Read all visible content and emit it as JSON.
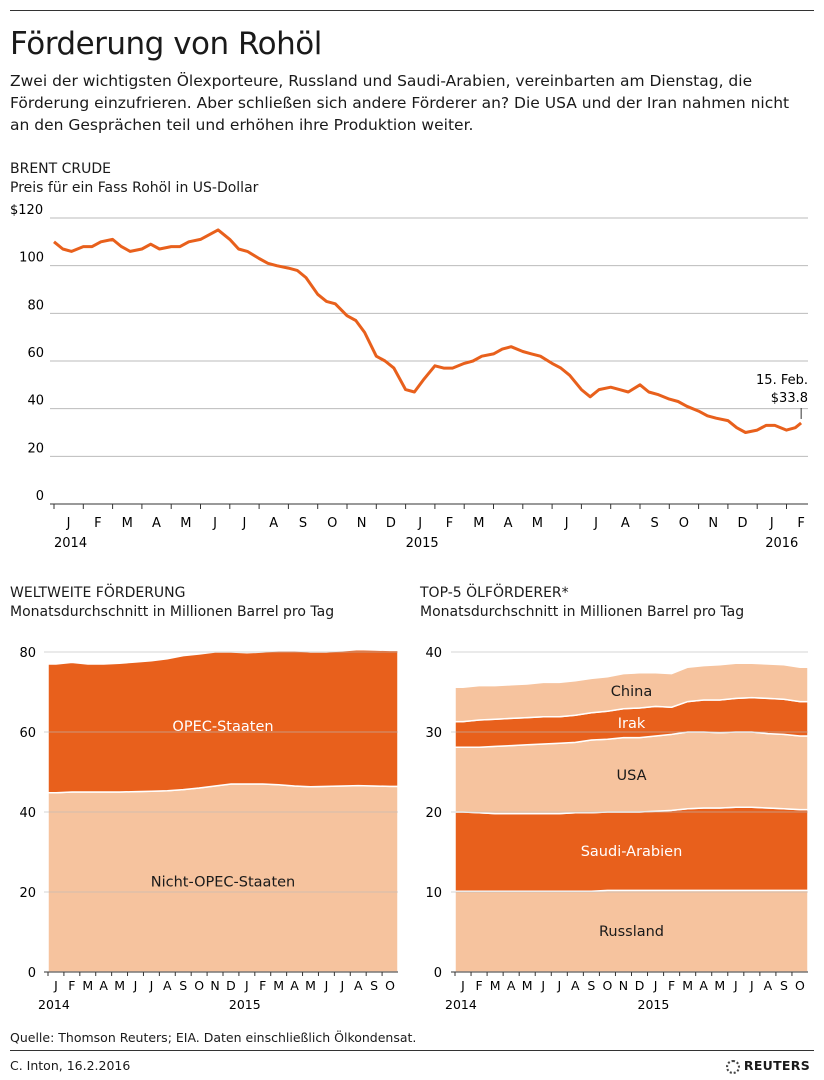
{
  "title": "Förderung von Rohöl",
  "intro": "Zwei der wichtigsten Ölexporteure, Russland und Saudi-Arabien, vereinbarten am Dienstag, die Förderung einzufrieren. Aber schließen sich andere Förderer an? Die USA und der Iran nahmen nicht an den Gesprächen teil und erhöhen ihre Produktion weiter.",
  "colors": {
    "dark_orange": "#e8601c",
    "light_orange": "#f6c39e",
    "grid": "#bbbbbb",
    "axis": "#333333"
  },
  "source": "Quelle: Thomson Reuters; EIA. Daten einschließlich Ölkondensat.",
  "credit": "C. Inton, 16.2.2016",
  "logo_text": "REUTERS",
  "chart_data": [
    {
      "type": "line",
      "title": "BRENT CRUDE",
      "subtitle": "Preis für ein Fass Rohöl in US-Dollar",
      "ylim": [
        0,
        120
      ],
      "y_ticks": [
        "0",
        "20",
        "40",
        "60",
        "80",
        "100",
        "$120"
      ],
      "month_labels": [
        "J",
        "F",
        "M",
        "A",
        "M",
        "J",
        "J",
        "A",
        "S",
        "O",
        "N",
        "D",
        "J",
        "F",
        "M",
        "A",
        "M",
        "J",
        "J",
        "A",
        "S",
        "O",
        "N",
        "D",
        "J",
        "F"
      ],
      "year_labels": [
        {
          "label": "2014",
          "month_index": 0
        },
        {
          "label": "2015",
          "month_index": 12
        },
        {
          "label": "2016",
          "month_index": 24
        }
      ],
      "annotation": {
        "date": "15. Feb.",
        "value": "$33.8"
      },
      "series": [
        {
          "x_month": [
            0,
            0.3,
            0.6,
            1,
            1.3,
            1.6,
            2,
            2.3,
            2.6,
            3,
            3.3,
            3.6,
            4,
            4.3,
            4.6,
            5,
            5.3,
            5.6,
            6,
            6.3,
            6.6,
            7,
            7.3,
            7.6,
            8,
            8.3,
            8.6,
            9,
            9.3,
            9.6,
            10,
            10.3,
            10.6,
            11,
            11.3,
            11.6,
            12,
            12.3,
            12.6,
            13,
            13.3,
            13.6,
            14,
            14.3,
            14.6,
            15,
            15.3,
            15.6,
            16,
            16.3,
            16.6,
            17,
            17.3,
            17.6,
            18,
            18.3,
            18.6,
            19,
            19.3,
            19.6,
            20,
            20.3,
            20.6,
            21,
            21.3,
            21.6,
            22,
            22.3,
            22.6,
            23,
            23.3,
            23.6,
            24,
            24.3,
            24.6,
            25,
            25.3,
            25.5
          ],
          "y": [
            110,
            107,
            106,
            108,
            108,
            110,
            111,
            108,
            106,
            107,
            109,
            107,
            108,
            108,
            110,
            111,
            113,
            115,
            111,
            107,
            106,
            103,
            101,
            100,
            99,
            98,
            95,
            88,
            85,
            84,
            79,
            77,
            72,
            62,
            60,
            57,
            48,
            47,
            52,
            58,
            57,
            57,
            59,
            60,
            62,
            63,
            65,
            66,
            64,
            63,
            62,
            59,
            57,
            54,
            48,
            45,
            48,
            49,
            48,
            47,
            50,
            47,
            46,
            44,
            43,
            41,
            39,
            37,
            36,
            35,
            32,
            30,
            31,
            33,
            33,
            31,
            32,
            34
          ]
        }
      ]
    },
    {
      "type": "area",
      "title": "WELTWEITE FÖRDERUNG",
      "subtitle": "Monatsdurchschnitt in Millionen Barrel pro Tag",
      "ylim": [
        0,
        80
      ],
      "y_ticks": [
        "0",
        "20",
        "40",
        "60",
        "80"
      ],
      "month_labels": [
        "J",
        "F",
        "M",
        "A",
        "M",
        "J",
        "J",
        "A",
        "S",
        "O",
        "N",
        "D",
        "J",
        "F",
        "M",
        "A",
        "M",
        "J",
        "J",
        "A",
        "S",
        "O"
      ],
      "year_labels": [
        {
          "label": "2014",
          "month_index": 0
        },
        {
          "label": "2015",
          "month_index": 12
        }
      ],
      "series": [
        {
          "name": "Nicht-OPEC-Staaten",
          "values": [
            44.8,
            45.0,
            45.0,
            45.0,
            45.0,
            45.1,
            45.2,
            45.3,
            45.6,
            46.0,
            46.5,
            47.0,
            47.0,
            47.0,
            46.8,
            46.5,
            46.3,
            46.4,
            46.5,
            46.6,
            46.5,
            46.4
          ]
        },
        {
          "name": "OPEC-Staaten",
          "values": [
            32.2,
            32.4,
            32.0,
            32.0,
            32.2,
            32.4,
            32.6,
            33.0,
            33.5,
            33.5,
            33.5,
            33.0,
            32.8,
            33.0,
            33.5,
            33.8,
            33.7,
            33.6,
            33.8,
            34.0,
            34.0,
            34.0
          ]
        }
      ]
    },
    {
      "type": "area",
      "title": "TOP-5 ÖLFÖRDERER*",
      "subtitle": "Monatsdurchschnitt in Millionen Barrel pro Tag",
      "ylim": [
        0,
        40
      ],
      "y_ticks": [
        "0",
        "10",
        "20",
        "30",
        "40"
      ],
      "month_labels": [
        "J",
        "F",
        "M",
        "A",
        "M",
        "J",
        "J",
        "A",
        "S",
        "O",
        "N",
        "D",
        "J",
        "F",
        "M",
        "A",
        "M",
        "J",
        "J",
        "A",
        "S",
        "O"
      ],
      "year_labels": [
        {
          "label": "2014",
          "month_index": 0
        },
        {
          "label": "2015",
          "month_index": 12
        }
      ],
      "series": [
        {
          "name": "Russland",
          "values": [
            10.1,
            10.1,
            10.1,
            10.1,
            10.1,
            10.1,
            10.1,
            10.1,
            10.1,
            10.2,
            10.2,
            10.2,
            10.2,
            10.2,
            10.2,
            10.2,
            10.2,
            10.2,
            10.2,
            10.2,
            10.2,
            10.2
          ]
        },
        {
          "name": "Saudi-Arabien",
          "values": [
            9.9,
            9.8,
            9.7,
            9.7,
            9.7,
            9.7,
            9.7,
            9.8,
            9.8,
            9.8,
            9.8,
            9.8,
            9.9,
            10.0,
            10.2,
            10.3,
            10.3,
            10.4,
            10.4,
            10.3,
            10.2,
            10.1
          ]
        },
        {
          "name": "USA",
          "values": [
            8.1,
            8.2,
            8.4,
            8.5,
            8.6,
            8.7,
            8.8,
            8.8,
            9.1,
            9.1,
            9.3,
            9.3,
            9.4,
            9.5,
            9.6,
            9.5,
            9.4,
            9.4,
            9.4,
            9.3,
            9.3,
            9.2
          ]
        },
        {
          "name": "Irak",
          "values": [
            3.2,
            3.4,
            3.4,
            3.4,
            3.4,
            3.4,
            3.3,
            3.4,
            3.4,
            3.5,
            3.6,
            3.7,
            3.7,
            3.4,
            3.8,
            4.0,
            4.1,
            4.2,
            4.3,
            4.4,
            4.4,
            4.3
          ]
        },
        {
          "name": "China",
          "values": [
            4.3,
            4.3,
            4.2,
            4.2,
            4.2,
            4.3,
            4.3,
            4.3,
            4.3,
            4.3,
            4.4,
            4.4,
            4.2,
            4.2,
            4.3,
            4.3,
            4.4,
            4.4,
            4.3,
            4.3,
            4.3,
            4.3
          ]
        }
      ]
    }
  ]
}
